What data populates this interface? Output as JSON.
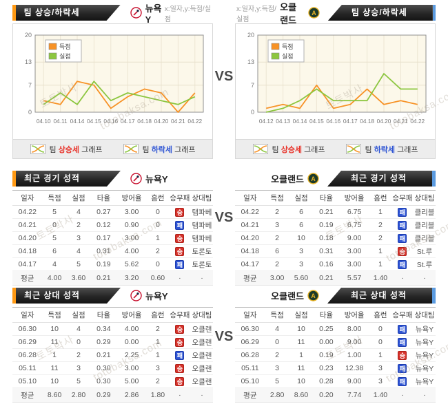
{
  "vs_label": "VS",
  "watermark": {
    "korean": "토토박사",
    "latin": "totobaksa.com"
  },
  "colors": {
    "scored_orange": "#f79226",
    "conceded_green": "#8cc63f",
    "accent_orange": "#ff9913",
    "accent_blue": "#5b9be0",
    "win_red": "#d6332c",
    "loss_blue": "#2f55d4",
    "chart_bg": "#fcf8ea"
  },
  "teams": {
    "left": {
      "name": "뉴욕Y"
    },
    "right": {
      "name": "오클랜드"
    }
  },
  "top": {
    "header_title": "팀 상승/하락세",
    "axis_note": "x:일자,y:득점/실점",
    "footer": {
      "team_word": "팀",
      "rise_word": "상승세",
      "fall_word": "하락세",
      "graph_word": "그래프"
    }
  },
  "chart_data": [
    {
      "type": "line",
      "team": "뉴욕Y",
      "title": "팀 상승/하락세",
      "x": [
        "04.10",
        "04.11",
        "04.14",
        "04.15",
        "04.16",
        "04.17",
        "04.18",
        "04.20",
        "04.21",
        "04.22"
      ],
      "ylim": [
        0,
        20
      ],
      "yticks": [
        0,
        7,
        13,
        20
      ],
      "grid": true,
      "legend_position": "top-left",
      "series": [
        {
          "name": "득점",
          "color": "#f79226",
          "values": [
            3,
            2,
            8,
            7,
            1,
            4,
            6,
            5,
            0,
            5
          ]
        },
        {
          "name": "실점",
          "color": "#8cc63f",
          "values": [
            2,
            5,
            2,
            8,
            3,
            5,
            4,
            3,
            2,
            4
          ]
        }
      ]
    },
    {
      "type": "line",
      "team": "오클랜드",
      "title": "팀 상승/하락세",
      "x": [
        "04.12",
        "04.13",
        "04.14",
        "04.15",
        "04.16",
        "04.17",
        "04.18",
        "04.20",
        "04.21",
        "04.22"
      ],
      "ylim": [
        0,
        20
      ],
      "yticks": [
        0,
        7,
        13,
        20
      ],
      "grid": true,
      "legend_position": "top-left",
      "series": [
        {
          "name": "득점",
          "color": "#f79226",
          "values": [
            1,
            2,
            1,
            7,
            1,
            2,
            6,
            2,
            3,
            2
          ]
        },
        {
          "name": "실점",
          "color": "#8cc63f",
          "values": [
            0,
            1,
            3,
            6,
            3,
            3,
            3,
            10,
            6,
            6
          ]
        }
      ]
    }
  ],
  "tables": {
    "headers": [
      "일자",
      "득점",
      "실점",
      "타율",
      "방어율",
      "홈런",
      "승무패",
      "상대팀"
    ],
    "avg_label": "평균",
    "badge_win": "승",
    "badge_loss": "패",
    "recent": {
      "title": "최근 경기 성적",
      "left": {
        "rows": [
          [
            "04.22",
            "5",
            "4",
            "0.27",
            "3.00",
            "0",
            "승",
            "탬파베"
          ],
          [
            "04.21",
            "0",
            "2",
            "0.12",
            "0.90",
            "0",
            "패",
            "탬파베"
          ],
          [
            "04.20",
            "5",
            "3",
            "0.17",
            "3.00",
            "1",
            "승",
            "탬파베"
          ],
          [
            "04.18",
            "6",
            "4",
            "0.31",
            "4.00",
            "2",
            "승",
            "토론토"
          ],
          [
            "04.17",
            "4",
            "5",
            "0.19",
            "5.62",
            "0",
            "패",
            "토론토"
          ]
        ],
        "avg": [
          "4.00",
          "3.60",
          "0.21",
          "3.20",
          "0.60",
          "·",
          "·"
        ]
      },
      "right": {
        "rows": [
          [
            "04.22",
            "2",
            "6",
            "0.21",
            "6.75",
            "1",
            "패",
            "클리블"
          ],
          [
            "04.21",
            "3",
            "6",
            "0.19",
            "6.75",
            "2",
            "패",
            "클리블"
          ],
          [
            "04.20",
            "2",
            "10",
            "0.18",
            "9.00",
            "2",
            "패",
            "클리블"
          ],
          [
            "04.18",
            "6",
            "3",
            "0.31",
            "3.00",
            "1",
            "승",
            "St.루"
          ],
          [
            "04.17",
            "2",
            "3",
            "0.16",
            "3.00",
            "1",
            "패",
            "St.루"
          ]
        ],
        "avg": [
          "3.00",
          "5.60",
          "0.21",
          "5.57",
          "1.40",
          "·",
          "·"
        ]
      }
    },
    "h2h": {
      "title": "최근 상대 성적",
      "left": {
        "rows": [
          [
            "06.30",
            "10",
            "4",
            "0.34",
            "4.00",
            "2",
            "승",
            "오클랜"
          ],
          [
            "06.29",
            "11",
            "0",
            "0.29",
            "0.00",
            "1",
            "승",
            "오클랜"
          ],
          [
            "06.28",
            "1",
            "2",
            "0.21",
            "2.25",
            "1",
            "패",
            "오클랜"
          ],
          [
            "05.11",
            "11",
            "3",
            "0.30",
            "3.00",
            "3",
            "승",
            "오클랜"
          ],
          [
            "05.10",
            "10",
            "5",
            "0.30",
            "5.00",
            "2",
            "승",
            "오클랜"
          ]
        ],
        "avg": [
          "8.60",
          "2.80",
          "0.29",
          "2.86",
          "1.80",
          "·",
          "·"
        ]
      },
      "right": {
        "rows": [
          [
            "06.30",
            "4",
            "10",
            "0.25",
            "8.00",
            "0",
            "패",
            "뉴욕Y"
          ],
          [
            "06.29",
            "0",
            "11",
            "0.00",
            "9.00",
            "0",
            "패",
            "뉴욕Y"
          ],
          [
            "06.28",
            "2",
            "1",
            "0.19",
            "1.00",
            "1",
            "승",
            "뉴욕Y"
          ],
          [
            "05.11",
            "3",
            "11",
            "0.23",
            "12.38",
            "3",
            "패",
            "뉴욕Y"
          ],
          [
            "05.10",
            "5",
            "10",
            "0.28",
            "9.00",
            "3",
            "패",
            "뉴욕Y"
          ]
        ],
        "avg": [
          "2.80",
          "8.60",
          "0.20",
          "7.74",
          "1.40",
          "·",
          "·"
        ]
      }
    }
  }
}
